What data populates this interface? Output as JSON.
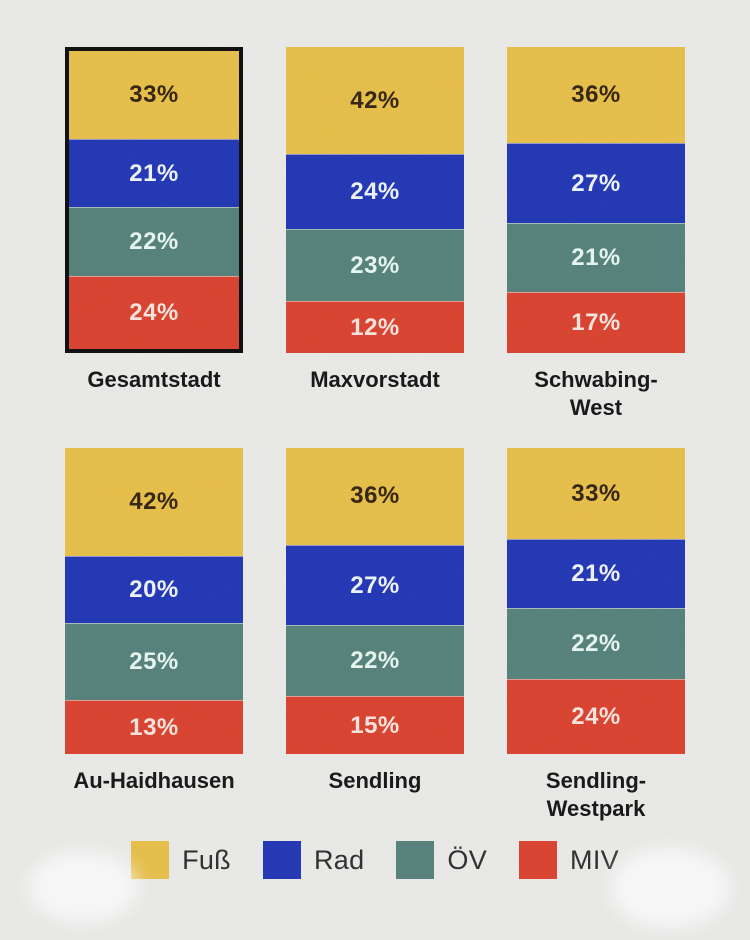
{
  "page": {
    "background_color": "#e9e9e7"
  },
  "chart_data": {
    "type": "bar",
    "variant": "stacked-100-percent-columns",
    "unit": "%",
    "grid": false,
    "categories": [
      "Fuß",
      "Rad",
      "ÖV",
      "MIV"
    ],
    "series_colors": {
      "Fuß": "#e6be49",
      "Rad": "#2236b4",
      "ÖV": "#55817a",
      "MIV": "#d9422f"
    },
    "value_label_colors": {
      "Fuß": "#33240f",
      "Rad": "#eef3fb",
      "ÖV": "#e6f6f0",
      "MIV": "#f8e4de"
    },
    "highlight_border_color": "#0d0d0d",
    "districts": [
      {
        "name": "Gesamtstadt",
        "display_lines": [
          "Gesamtstadt"
        ],
        "highlighted": true,
        "values": [
          33,
          21,
          22,
          24
        ]
      },
      {
        "name": "Maxvorstadt",
        "display_lines": [
          "Maxvorstadt"
        ],
        "highlighted": false,
        "values": [
          42,
          24,
          23,
          12
        ]
      },
      {
        "name": "Schwabing-West",
        "display_lines": [
          "Schwabing-",
          "West"
        ],
        "highlighted": false,
        "values": [
          36,
          27,
          21,
          17
        ]
      },
      {
        "name": "Au-Haidhausen",
        "display_lines": [
          "Au-Haidhausen"
        ],
        "highlighted": false,
        "values": [
          42,
          20,
          25,
          13
        ]
      },
      {
        "name": "Sendling",
        "display_lines": [
          "Sendling"
        ],
        "highlighted": false,
        "values": [
          36,
          27,
          22,
          15
        ]
      },
      {
        "name": "Sendling-Westpark",
        "display_lines": [
          "Sendling-",
          "Westpark"
        ],
        "highlighted": false,
        "values": [
          33,
          21,
          22,
          24
        ]
      }
    ],
    "legend": {
      "position": "bottom",
      "items": [
        {
          "label": "Fuß",
          "color": "#e6be49"
        },
        {
          "label": "Rad",
          "color": "#2236b4"
        },
        {
          "label": "ÖV",
          "color": "#55817a"
        },
        {
          "label": "MIV",
          "color": "#d9422f"
        }
      ]
    }
  }
}
